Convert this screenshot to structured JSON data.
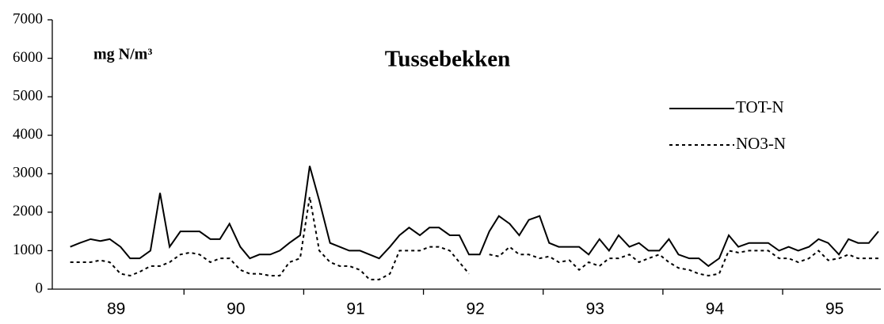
{
  "chart_data": {
    "type": "line",
    "title": "Tussebekken",
    "ylabel": "mg N/m³",
    "x": [
      1989.05,
      1989.13,
      1989.22,
      1989.3,
      1989.38,
      1989.47,
      1989.55,
      1989.63,
      1989.72,
      1989.8,
      1989.88,
      1989.97,
      1990.05,
      1990.13,
      1990.22,
      1990.3,
      1990.38,
      1990.47,
      1990.55,
      1990.63,
      1990.72,
      1990.8,
      1990.88,
      1990.97,
      1991.05,
      1991.13,
      1991.22,
      1991.3,
      1991.38,
      1991.47,
      1991.55,
      1991.63,
      1991.72,
      1991.8,
      1991.88,
      1991.97,
      1992.05,
      1992.13,
      1992.22,
      1992.3,
      1992.38,
      1992.47,
      1992.55,
      1992.63,
      1992.72,
      1992.8,
      1992.88,
      1992.97,
      1993.05,
      1993.13,
      1993.22,
      1993.3,
      1993.38,
      1993.47,
      1993.55,
      1993.63,
      1993.72,
      1993.8,
      1993.88,
      1993.97,
      1994.05,
      1994.13,
      1994.22,
      1994.3,
      1994.38,
      1994.47,
      1994.55,
      1994.63,
      1994.72,
      1994.8,
      1994.88,
      1994.97,
      1995.05,
      1995.13,
      1995.22,
      1995.3,
      1995.38,
      1995.47,
      1995.55,
      1995.63,
      1995.72,
      1995.8
    ],
    "series": [
      {
        "name": "TOT-N",
        "color": "#000000",
        "dash": "solid",
        "values": [
          1100,
          1200,
          1300,
          1250,
          1300,
          1100,
          800,
          800,
          1000,
          2500,
          1100,
          1500,
          1500,
          1500,
          1300,
          1300,
          1700,
          1100,
          800,
          900,
          900,
          1000,
          1200,
          1400,
          3200,
          2300,
          1200,
          1100,
          1000,
          1000,
          900,
          800,
          1100,
          1400,
          1600,
          1400,
          1600,
          1600,
          1400,
          1400,
          900,
          900,
          1500,
          1900,
          1700,
          1400,
          1800,
          1900,
          1200,
          1100,
          1100,
          1100,
          900,
          1300,
          1000,
          1400,
          1100,
          1200,
          1000,
          1000,
          1300,
          900,
          800,
          800,
          600,
          800,
          1400,
          1100,
          1200,
          1200,
          1200,
          1000,
          1100,
          1000,
          1100,
          1300,
          1200,
          900,
          1300,
          1200,
          1200,
          1500
        ]
      },
      {
        "name": "NO3-N",
        "color": "#000000",
        "dash": "dotted",
        "values": [
          700,
          700,
          700,
          750,
          700,
          400,
          350,
          450,
          600,
          600,
          700,
          900,
          950,
          900,
          700,
          800,
          800,
          500,
          400,
          400,
          350,
          350,
          700,
          800,
          2400,
          1000,
          700,
          600,
          600,
          500,
          250,
          250,
          400,
          1000,
          1000,
          1000,
          1100,
          1100,
          1000,
          700,
          400,
          null,
          900,
          850,
          1100,
          900,
          900,
          800,
          850,
          700,
          750,
          500,
          700,
          600,
          800,
          800,
          900,
          700,
          800,
          900,
          700,
          550,
          500,
          400,
          350,
          400,
          1000,
          950,
          1000,
          1000,
          1000,
          800,
          800,
          700,
          800,
          1000,
          750,
          800,
          900,
          800,
          800,
          800
        ]
      }
    ],
    "xlim": [
      1988.9,
      1995.82
    ],
    "xticks": [
      {
        "value": 1989.5,
        "label": "89"
      },
      {
        "value": 1990.5,
        "label": "90"
      },
      {
        "value": 1991.5,
        "label": "91"
      },
      {
        "value": 1992.5,
        "label": "92"
      },
      {
        "value": 1993.5,
        "label": "93"
      },
      {
        "value": 1994.5,
        "label": "94"
      },
      {
        "value": 1995.5,
        "label": "95"
      }
    ],
    "ylim": [
      0,
      7000
    ],
    "yticks": [
      0,
      1000,
      2000,
      3000,
      4000,
      5000,
      6000,
      7000
    ],
    "legend": "upper right",
    "grid": false
  }
}
